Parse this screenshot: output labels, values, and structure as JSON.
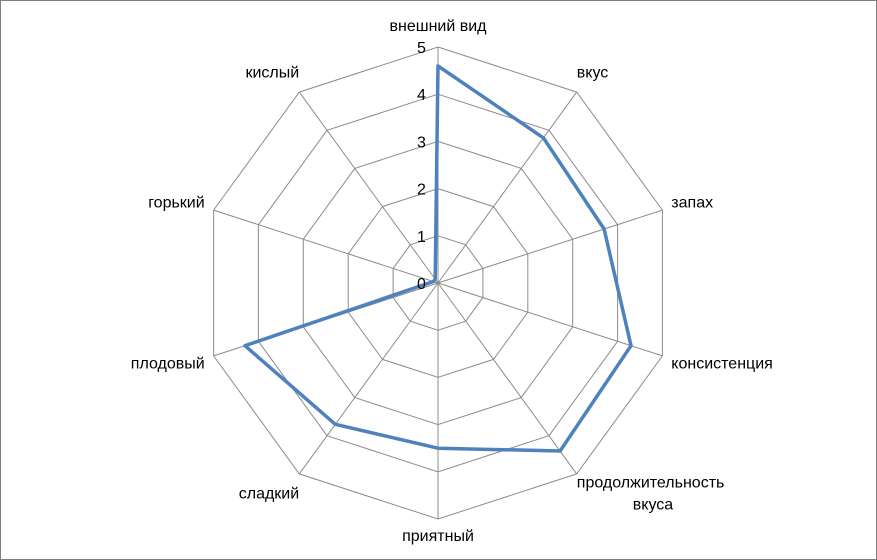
{
  "chart_data": {
    "type": "radar",
    "title": "",
    "axes": [
      [
        "внешний вид"
      ],
      [
        "вкус"
      ],
      [
        "запах"
      ],
      [
        "консистенция"
      ],
      [
        "продолжительность",
        "вкуса"
      ],
      [
        "приятный"
      ],
      [
        "сладкий"
      ],
      [
        "плодовый"
      ],
      [
        "горький"
      ],
      [
        "кислый"
      ]
    ],
    "ticks": [
      "0",
      "1",
      "2",
      "3",
      "4",
      "5"
    ],
    "range": [
      0,
      5
    ],
    "grid": true,
    "legend": "none",
    "series": [
      {
        "values": [
          4.6,
          3.8,
          3.7,
          4.3,
          4.4,
          3.5,
          3.7,
          4.3,
          0.1,
          0.1
        ],
        "color": "#4f81bd"
      }
    ]
  }
}
